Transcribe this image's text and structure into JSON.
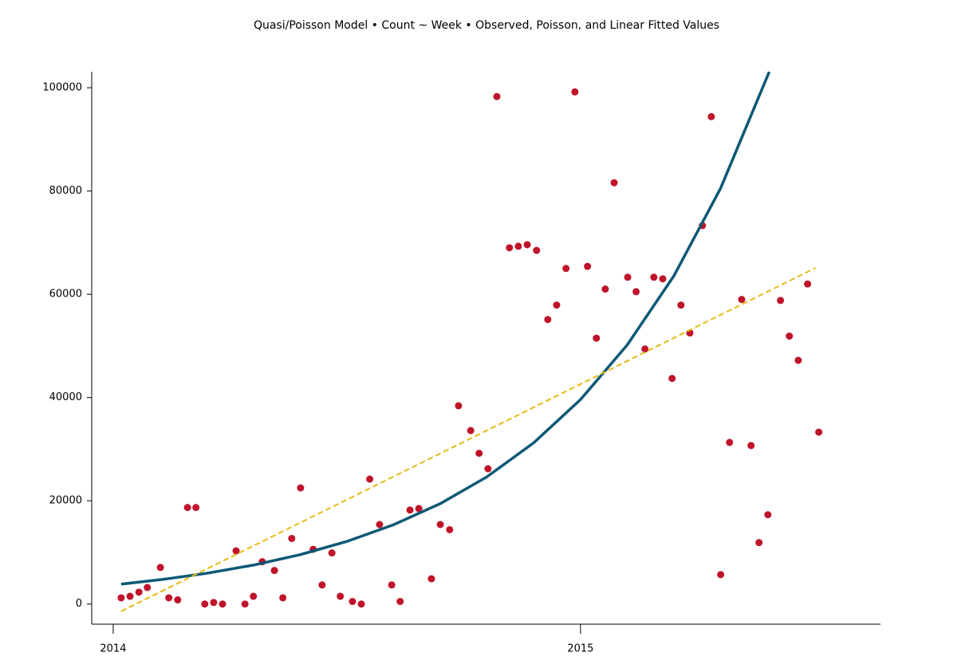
{
  "chart_data": {
    "type": "scatter",
    "title": "Quasi/Poisson Model • Count ~ Week • Observed, Poisson, and Linear Fitted Values",
    "xlim": [
      2013.954,
      2015.642
    ],
    "xticks": [
      2014,
      2015
    ],
    "ylim": [
      -3900,
      103100
    ],
    "yticks": [
      0,
      20000,
      40000,
      60000,
      80000,
      100000
    ],
    "grid": false,
    "series": [
      {
        "type": "scatter",
        "color": "#c0142a",
        "x": [
          2014.017,
          2014.036,
          2014.055,
          2014.073,
          2014.101,
          2014.119,
          2014.138,
          2014.159,
          2014.177,
          2014.196,
          2014.215,
          2014.234,
          2014.263,
          2014.282,
          2014.3,
          2014.319,
          2014.345,
          2014.363,
          2014.382,
          2014.401,
          2014.428,
          2014.447,
          2014.468,
          2014.486,
          2014.512,
          2014.531,
          2014.549,
          2014.57,
          2014.596,
          2014.614,
          2014.635,
          2014.654,
          2014.681,
          2014.7,
          2014.72,
          2014.739,
          2014.765,
          2014.783,
          2014.802,
          2014.821,
          2014.848,
          2014.867,
          2014.886,
          2014.906,
          2014.93,
          2014.949,
          2014.969,
          2014.988,
          2015.015,
          2015.034,
          2015.053,
          2015.072,
          2015.101,
          2015.119,
          2015.138,
          2015.157,
          2015.176,
          2015.196,
          2015.215,
          2015.234,
          2015.261,
          2015.28,
          2015.3,
          2015.319,
          2015.345,
          2015.365,
          2015.382,
          2015.401,
          2015.428,
          2015.447,
          2015.466,
          2015.486,
          2015.51
        ],
        "values": [
          1200,
          1500,
          2300,
          3200,
          7100,
          1200,
          800,
          18700,
          18700,
          0,
          300,
          0,
          10300,
          0,
          1500,
          8200,
          6500,
          1200,
          12700,
          22500,
          10600,
          3700,
          9900,
          1500,
          500,
          0,
          24200,
          15400,
          3700,
          500,
          18200,
          18500,
          4900,
          15400,
          14400,
          38400,
          33600,
          29200,
          26200,
          98300,
          69000,
          69300,
          69600,
          68500,
          55100,
          57900,
          65000,
          99200,
          65400,
          51500,
          61000,
          81600,
          63300,
          60500,
          49400,
          63300,
          63000,
          43700,
          57900,
          52500,
          73300,
          94400,
          5700,
          31300,
          59000,
          30700,
          11900,
          17300,
          58800,
          51900,
          47200,
          62000,
          33300
        ]
      },
      {
        "type": "line",
        "color": "#0d5876",
        "dashed": false,
        "x": [
          2014.017,
          2014.1,
          2014.2,
          2014.3,
          2014.4,
          2014.5,
          2014.6,
          2014.7,
          2014.8,
          2014.9,
          2015.0,
          2015.1,
          2015.2,
          2015.3,
          2015.404
        ],
        "values": [
          3860,
          4700,
          5950,
          7540,
          9560,
          12120,
          15360,
          19450,
          24650,
          31240,
          39600,
          50180,
          63580,
          80560,
          103100
        ]
      },
      {
        "type": "line",
        "color": "#e8b90f",
        "dashed": true,
        "x": [
          2014.017,
          2015.503
        ],
        "values": [
          -1400,
          65100
        ]
      }
    ]
  }
}
